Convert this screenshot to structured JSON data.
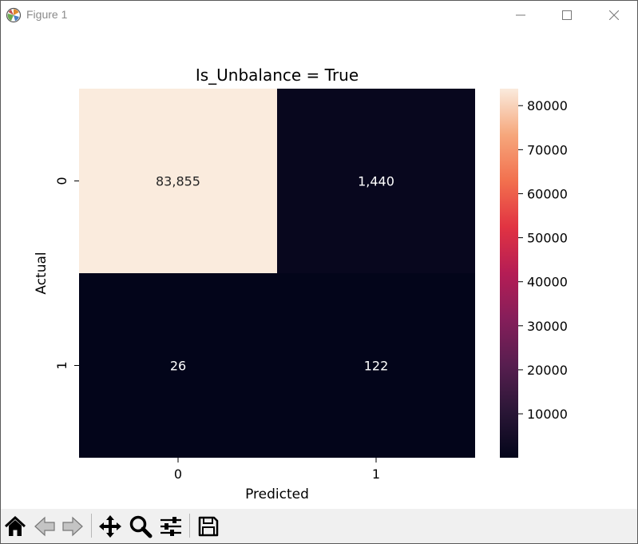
{
  "window": {
    "title": "Figure 1",
    "controls": {
      "minimize_icon": "minimize-icon",
      "maximize_icon": "maximize-icon",
      "close_icon": "close-icon"
    }
  },
  "toolbar": {
    "buttons": [
      {
        "icon": "home-icon"
      },
      {
        "icon": "back-arrow-icon"
      },
      {
        "icon": "forward-arrow-icon"
      },
      {
        "icon": "pan-move-icon"
      },
      {
        "icon": "zoom-magnifier-icon"
      },
      {
        "icon": "configure-subplots-icon"
      },
      {
        "icon": "save-icon"
      }
    ]
  },
  "chart_data": {
    "type": "heatmap",
    "title": "Is_Unbalance = True",
    "xlabel": "Predicted",
    "ylabel": "Actual",
    "x_categories": [
      "0",
      "1"
    ],
    "y_categories": [
      "0",
      "1"
    ],
    "values": [
      [
        83855,
        1440
      ],
      [
        26,
        122
      ]
    ],
    "annotations": [
      [
        "83,855",
        "1,440"
      ],
      [
        "26",
        "122"
      ]
    ],
    "colormap": "rocket",
    "colorbar": {
      "min": 26,
      "max": 83855,
      "ticks": [
        10000,
        20000,
        30000,
        40000,
        50000,
        60000,
        70000,
        80000
      ],
      "tick_labels": [
        "10000",
        "20000",
        "30000",
        "40000",
        "50000",
        "60000",
        "70000",
        "80000"
      ]
    },
    "grid": false
  }
}
